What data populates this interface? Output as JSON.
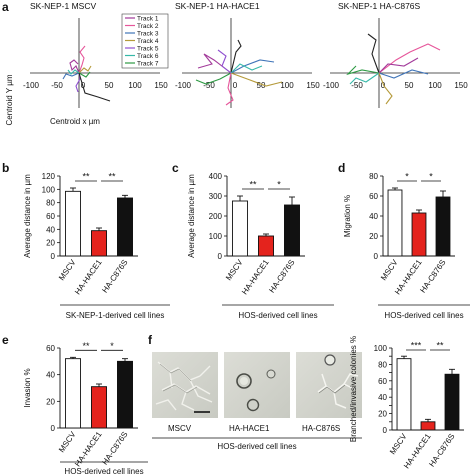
{
  "colors": {
    "mscv": "#ffffff",
    "hace1": "#e4231d",
    "c876s": "#111111",
    "track1": "#a23a9a",
    "track2": "#e6569a",
    "track3": "#3f74b8",
    "track4": "#b59a3a",
    "track5": "#8f4fd0",
    "track6": "#35b8a8",
    "track7": "#2d9a43"
  },
  "panel_labels": {
    "a": "a",
    "b": "b",
    "c": "c",
    "d": "d",
    "e": "e",
    "f": "f"
  },
  "panel_a": {
    "titles": [
      "SK-NEP-1 MSCV",
      "SK-NEP-1 HA-HACE1",
      "SK-NEP-1 HA-C876S"
    ],
    "y_axis_label": "Centroid Y µm",
    "x_axis_label": "Centroid x µm",
    "x_ticks": [
      "-100",
      "-50",
      "0",
      "50",
      "100",
      "150"
    ],
    "legend": [
      "Track 1",
      "Track 2",
      "Track 3",
      "Track 4",
      "Track 5",
      "Track 6",
      "Track 7"
    ]
  },
  "panel_f": {
    "images": [
      "MSCV",
      "HA-HACE1",
      "HA-C876S"
    ],
    "group_label": "HOS-derived cell lines"
  },
  "chart_data": [
    {
      "panel": "b",
      "type": "bar",
      "categories": [
        "MSCV",
        "HA-HACE1",
        "HA-C876S"
      ],
      "values": [
        97,
        38,
        87
      ],
      "errors": [
        5,
        4,
        4
      ],
      "ylabel": "Average distance in µm",
      "xlabel": "SK-NEP-1-derived cell lines",
      "ylim": [
        0,
        120
      ],
      "yticks": [
        0,
        20,
        40,
        60,
        80,
        100,
        120
      ],
      "significance": [
        {
          "from": 0,
          "to": 1,
          "label": "**"
        },
        {
          "from": 1,
          "to": 2,
          "label": "**"
        }
      ]
    },
    {
      "panel": "c",
      "type": "bar",
      "categories": [
        "MSCV",
        "HA-HACE1",
        "HA-C876S"
      ],
      "values": [
        275,
        100,
        255
      ],
      "errors": [
        25,
        10,
        40
      ],
      "ylabel": "Average distance in µm",
      "xlabel": "HOS-derived cell lines",
      "ylim": [
        0,
        400
      ],
      "yticks": [
        0,
        100,
        200,
        300,
        400
      ],
      "significance": [
        {
          "from": 0,
          "to": 1,
          "label": "**"
        },
        {
          "from": 1,
          "to": 2,
          "label": "*"
        }
      ]
    },
    {
      "panel": "d",
      "type": "bar",
      "categories": [
        "MSCV",
        "HA-HACE1",
        "HA-C876S"
      ],
      "values": [
        66,
        43,
        59
      ],
      "errors": [
        2,
        3,
        6
      ],
      "ylabel": "Migration %",
      "xlabel": "HOS-derived cell lines",
      "ylim": [
        0,
        80
      ],
      "yticks": [
        0,
        20,
        40,
        60,
        80
      ],
      "significance": [
        {
          "from": 0,
          "to": 1,
          "label": "*"
        },
        {
          "from": 1,
          "to": 2,
          "label": "*"
        }
      ]
    },
    {
      "panel": "e",
      "type": "bar",
      "categories": [
        "MSCV",
        "HA-HACE1",
        "HA-C876S"
      ],
      "values": [
        52,
        31,
        50
      ],
      "errors": [
        1,
        2,
        2
      ],
      "ylabel": "Invasion %",
      "xlabel": "HOS-derived cell lines",
      "ylim": [
        0,
        60
      ],
      "yticks": [
        0,
        20,
        40,
        60
      ],
      "significance": [
        {
          "from": 0,
          "to": 1,
          "label": "**"
        },
        {
          "from": 1,
          "to": 2,
          "label": "*"
        }
      ]
    },
    {
      "panel": "f",
      "type": "bar",
      "categories": [
        "MSCV",
        "HA-HACE1",
        "HA-C876S"
      ],
      "values": [
        87,
        10,
        68
      ],
      "errors": [
        3,
        3,
        6
      ],
      "ylabel": "Branched/invasive colonies %",
      "xlabel": "",
      "ylim": [
        0,
        100
      ],
      "yticks": [
        0,
        10,
        20,
        30,
        40,
        50,
        60,
        70,
        80,
        90,
        100
      ],
      "significance": [
        {
          "from": 0,
          "to": 1,
          "label": "***"
        },
        {
          "from": 1,
          "to": 2,
          "label": "**"
        }
      ]
    }
  ]
}
